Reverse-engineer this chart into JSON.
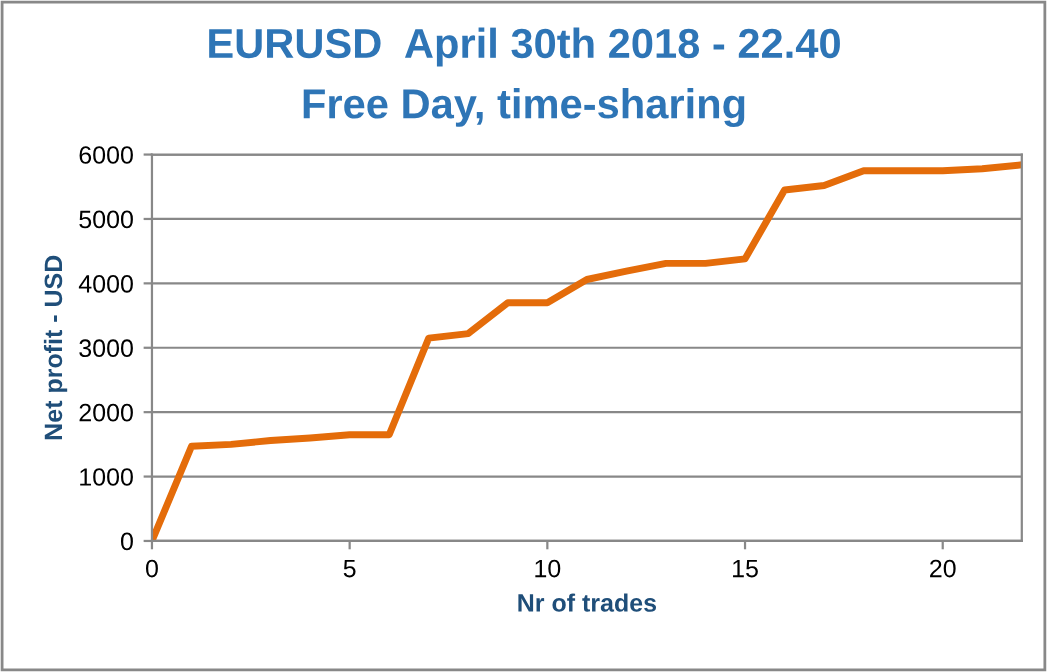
{
  "chart_data": {
    "type": "line",
    "title": "EURUSD  April 30th 2018 - 22.40",
    "subtitle": "Free Day, time-sharing",
    "xlabel": "Nr of trades",
    "ylabel": "Net profit - USD",
    "x": [
      0,
      1,
      2,
      3,
      4,
      5,
      6,
      7,
      8,
      9,
      10,
      11,
      12,
      13,
      14,
      15,
      16,
      17,
      18,
      19,
      20,
      21,
      22
    ],
    "series": [
      {
        "color": "#e46c0a",
        "values": [
          0,
          1470,
          1500,
          1560,
          1600,
          1650,
          1650,
          3150,
          3220,
          3700,
          3700,
          4060,
          4190,
          4310,
          4310,
          4380,
          5450,
          5520,
          5750,
          5750,
          5750,
          5780,
          5840
        ]
      }
    ],
    "xlim": [
      0,
      22
    ],
    "xticks": [
      0,
      5,
      10,
      15,
      20
    ],
    "ylim": [
      0,
      6000
    ],
    "yticks": [
      0,
      1000,
      2000,
      3000,
      4000,
      5000,
      6000
    ],
    "grid": "y",
    "legend": false,
    "marker": "none",
    "line_style": "solid"
  }
}
